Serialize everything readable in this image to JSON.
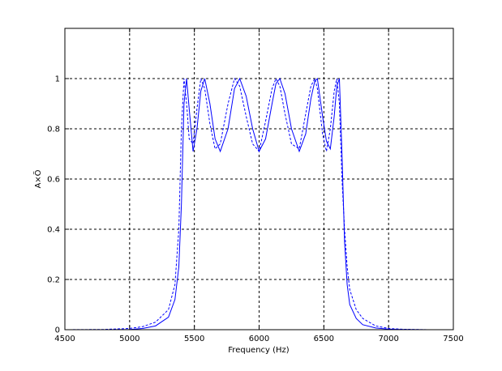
{
  "chart_data": {
    "type": "line",
    "xlabel": "Frequency (Hz)",
    "ylabel": "A×Ö",
    "xlim": [
      4500,
      7500
    ],
    "xticks": [
      4500,
      5000,
      5500,
      6000,
      6500,
      7000,
      7500
    ],
    "ylim": [
      0,
      1.2
    ],
    "yticks": [
      0,
      0.2,
      0.4,
      0.6,
      0.8,
      1
    ],
    "grid": true,
    "x": [
      4500,
      4800,
      5000,
      5100,
      5200,
      5300,
      5350,
      5380,
      5400,
      5420,
      5440,
      5460,
      5490,
      5520,
      5550,
      5580,
      5620,
      5660,
      5700,
      5760,
      5810,
      5850,
      5900,
      5950,
      6000,
      6050,
      6100,
      6130,
      6160,
      6200,
      6250,
      6310,
      6360,
      6400,
      6430,
      6450,
      6490,
      6520,
      6550,
      6580,
      6600,
      6620,
      6640,
      6660,
      6680,
      6700,
      6750,
      6800,
      6900,
      7000,
      7100,
      7300,
      7500
    ],
    "series": [
      {
        "color": "#0000ff",
        "dashed": false,
        "values": [
          0,
          0,
          0.001,
          0.005,
          0.015,
          0.05,
          0.12,
          0.25,
          0.5,
          0.9,
          1.0,
          0.88,
          0.71,
          0.8,
          0.95,
          1.0,
          0.9,
          0.76,
          0.71,
          0.8,
          0.96,
          1.0,
          0.93,
          0.8,
          0.71,
          0.76,
          0.9,
          0.98,
          1.0,
          0.94,
          0.8,
          0.71,
          0.78,
          0.92,
          0.99,
          1.0,
          0.85,
          0.75,
          0.72,
          0.85,
          0.97,
          1.0,
          0.7,
          0.35,
          0.18,
          0.1,
          0.045,
          0.02,
          0.007,
          0.002,
          0.001,
          0,
          0
        ]
      },
      {
        "color": "#0000ff",
        "dashed": true,
        "values": [
          0,
          0.001,
          0.005,
          0.012,
          0.03,
          0.08,
          0.18,
          0.4,
          0.8,
          1.0,
          0.9,
          0.76,
          0.74,
          0.88,
          1.0,
          0.96,
          0.82,
          0.72,
          0.74,
          0.9,
          1.0,
          0.97,
          0.85,
          0.74,
          0.71,
          0.83,
          0.96,
          1.0,
          0.97,
          0.86,
          0.74,
          0.72,
          0.86,
          0.97,
          1.0,
          0.96,
          0.78,
          0.71,
          0.8,
          0.95,
          1.0,
          0.9,
          0.6,
          0.4,
          0.25,
          0.16,
          0.08,
          0.045,
          0.015,
          0.005,
          0.002,
          0,
          0
        ]
      }
    ]
  }
}
